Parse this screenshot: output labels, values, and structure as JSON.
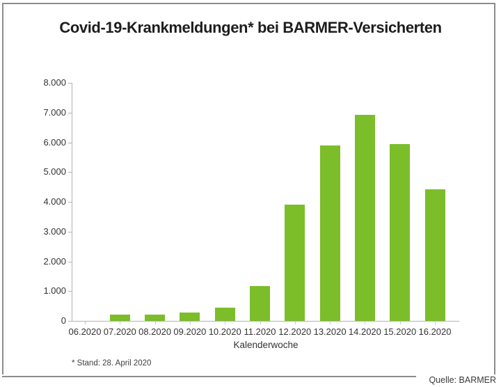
{
  "title": "Covid-19-Krankmeldungen* bei BARMER-Versicherten",
  "footnote": "* Stand: 28. April 2020",
  "source": "Quelle: BARMER",
  "colors": {
    "bar": "#7cbd2a",
    "axis": "#b3b3b3",
    "minor_tick": "#c9c9c9",
    "label_text": "#333333",
    "title_text": "#1d1d1d",
    "frame_border": "#8c8c8c",
    "background": "#ffffff"
  },
  "chart_data": {
    "type": "bar",
    "title": "Covid-19-Krankmeldungen* bei BARMER-Versicherten",
    "categories": [
      "06.2020",
      "07.2020",
      "08.2020",
      "09.2020",
      "10.2020",
      "11.2020",
      "12.2020",
      "13.2020",
      "14.2020",
      "15.2020",
      "16.2020"
    ],
    "values": [
      0,
      200,
      210,
      270,
      450,
      1160,
      3900,
      5900,
      6930,
      5950,
      4430
    ],
    "xlabel": "Kalenderwoche",
    "ylabel": "",
    "ylim": [
      0,
      8000
    ],
    "ytick_step": 1000,
    "ytick_labels": [
      "0",
      "1.000",
      "2.000",
      "3.000",
      "4.000",
      "5.000",
      "6.000",
      "7.000",
      "8.000"
    ],
    "grid": false,
    "legend": false,
    "bar_color": "#7cbd2a"
  }
}
